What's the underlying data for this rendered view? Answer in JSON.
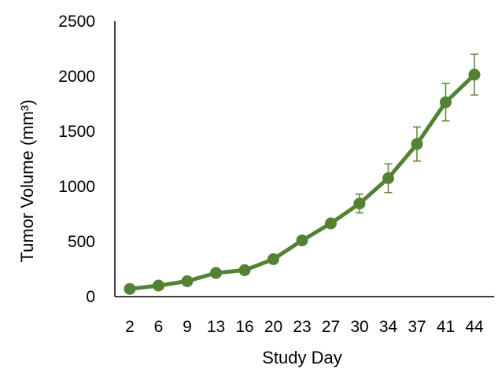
{
  "chart_data": {
    "type": "line",
    "title": "",
    "xlabel": "Study Day",
    "ylabel": "Tumor Volume  (mm³)",
    "categories": [
      "2",
      "6",
      "9",
      "13",
      "16",
      "20",
      "23",
      "27",
      "30",
      "34",
      "37",
      "41",
      "44"
    ],
    "y_ticks": [
      "0",
      "500",
      "1000",
      "1500",
      "2000",
      "2500"
    ],
    "ylim": [
      0,
      2500
    ],
    "grid": false,
    "legend": "none",
    "series": [
      {
        "values": [
          70,
          100,
          140,
          215,
          240,
          340,
          510,
          665,
          845,
          1075,
          1385,
          1765,
          2015
        ],
        "error": [
          0,
          0,
          0,
          0,
          0,
          0,
          0,
          0,
          85,
          130,
          155,
          170,
          185
        ],
        "color": "#548235"
      }
    ]
  }
}
